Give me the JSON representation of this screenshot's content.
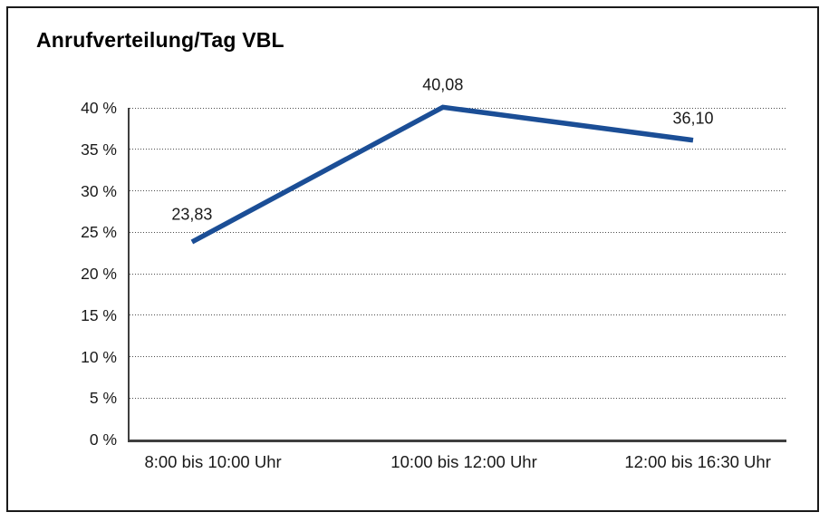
{
  "frame": {
    "background": "#ffffff",
    "border_color": "#1a1a1a"
  },
  "chart_data": {
    "type": "line",
    "title": "Anrufverteilung/Tag VBL",
    "categories": [
      "8:00 bis 10:00 Uhr",
      "10:00 bis 12:00 Uhr",
      "12:00 bis 16:30 Uhr"
    ],
    "values": [
      23.83,
      40.08,
      36.1
    ],
    "data_labels": [
      "23,83",
      "40,08",
      "36,10"
    ],
    "y_ticks": [
      "0 %",
      "5 %",
      "10 %",
      "15 %",
      "20 %",
      "25 %",
      "30 %",
      "35 %",
      "40 %"
    ],
    "ylim": [
      0,
      40
    ],
    "y_step": 5,
    "xlabel": "",
    "ylabel": "",
    "grid": "horizontal-dotted",
    "legend": "none",
    "line_color": "#1B4E96",
    "grid_color": "#4d4d4d",
    "axis_color": "#3f3f3f",
    "text_color": "#1a1a1a"
  }
}
